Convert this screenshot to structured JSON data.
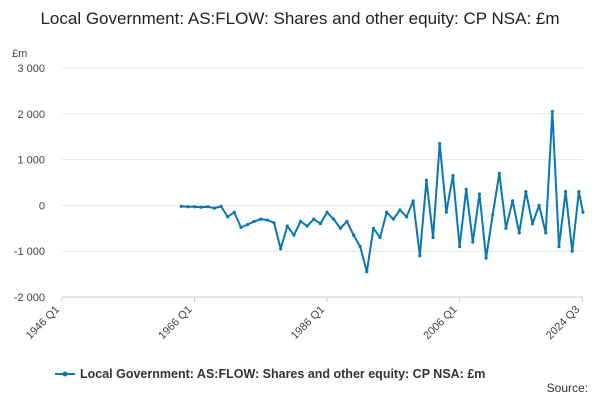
{
  "chart_data": {
    "type": "line",
    "title": "Local Government: AS:FLOW: Shares and other equity: CP NSA: £m",
    "unit": "£m",
    "x_ticks": [
      "1946 Q1",
      "1966 Q1",
      "1986 Q1",
      "2006 Q1",
      "2024 Q3"
    ],
    "y_ticks": [
      "3 000",
      "2 000",
      "1 000",
      "0",
      "-1 000",
      "-2 000"
    ],
    "xlim": [
      1946.0,
      2024.625
    ],
    "ylim": [
      -2000,
      3000
    ],
    "grid": true,
    "legend_position": "bottom",
    "series": [
      {
        "name": "Local Government: AS:FLOW: Shares and other equity: CP NSA: £m",
        "color": "#0a76b4",
        "x": [
          1964.0,
          1965.0,
          1966.0,
          1967.0,
          1968.0,
          1969.0,
          1970.0,
          1971.0,
          1972.0,
          1973.0,
          1974.0,
          1975.0,
          1976.0,
          1977.0,
          1978.0,
          1979.0,
          1980.0,
          1981.0,
          1982.0,
          1983.0,
          1984.0,
          1985.0,
          1986.0,
          1987.0,
          1988.0,
          1989.0,
          1990.0,
          1991.0,
          1992.0,
          1993.0,
          1994.0,
          1995.0,
          1996.0,
          1997.0,
          1998.0,
          1999.0,
          2000.0,
          2001.0,
          2002.0,
          2003.0,
          2004.0,
          2005.0,
          2006.0,
          2007.0,
          2008.0,
          2009.0,
          2010.0,
          2011.0,
          2012.0,
          2013.0,
          2014.0,
          2015.0,
          2016.0,
          2017.0,
          2018.0,
          2019.0,
          2020.0,
          2021.0,
          2022.0,
          2023.0,
          2024.0,
          2024.625
        ],
        "values": [
          -20,
          -30,
          -30,
          -40,
          -30,
          -60,
          -20,
          -250,
          -150,
          -480,
          -420,
          -350,
          -300,
          -320,
          -380,
          -950,
          -450,
          -650,
          -350,
          -450,
          -300,
          -400,
          -150,
          -300,
          -500,
          -350,
          -650,
          -900,
          -1450,
          -500,
          -700,
          -150,
          -300,
          -100,
          -250,
          100,
          -1100,
          550,
          -700,
          1350,
          -150,
          650,
          -900,
          350,
          -800,
          250,
          -1150,
          -200,
          700,
          -500,
          100,
          -600,
          300,
          -400,
          0,
          -600,
          2050,
          -900,
          300,
          -1000,
          300,
          -150
        ]
      }
    ],
    "legend": "Local Government: AS:FLOW: Shares and other equity: CP NSA: £m",
    "source_label": "Source:"
  }
}
